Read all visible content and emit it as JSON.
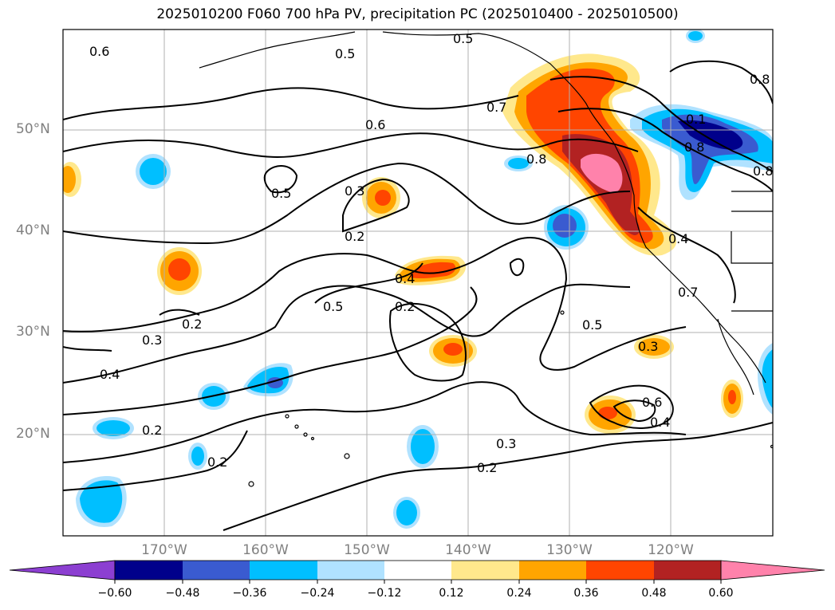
{
  "title": "2025010200 F060 700 hPa PV, precipitation PC (2025010400 - 2025010500)",
  "lat_ticks": [
    "50°N",
    "40°N",
    "30°N",
    "20°N"
  ],
  "lon_ticks": [
    "170°W",
    "160°W",
    "150°W",
    "140°W",
    "130°W",
    "120°W"
  ],
  "contour_labels": [
    "0.6",
    "0.5",
    "0.5",
    "0.7",
    "0.6",
    "0.8",
    "0.5",
    "0.3",
    "0.2",
    "0.4",
    "0.5",
    "0.2",
    "0.2",
    "0.3",
    "0.4",
    "0.2",
    "0.2",
    "0.5",
    "0.3",
    "0.6",
    "0.4",
    "0.3",
    "0.2",
    "0.4",
    "0.7",
    "0.8",
    "0.1",
    "0.8",
    "0.8"
  ],
  "colorbar": {
    "labels": [
      "−0.60",
      "−0.48",
      "−0.36",
      "−0.24",
      "−0.12",
      "0.12",
      "0.24",
      "0.36",
      "0.48",
      "0.60"
    ],
    "colors": [
      "#8c3fd1",
      "#00008b",
      "#3a5bd0",
      "#00bfff",
      "#b0e2ff",
      "#ffffff",
      "#ffe88c",
      "#ffa500",
      "#ff4500",
      "#b22222",
      "#ff82ab"
    ]
  }
}
